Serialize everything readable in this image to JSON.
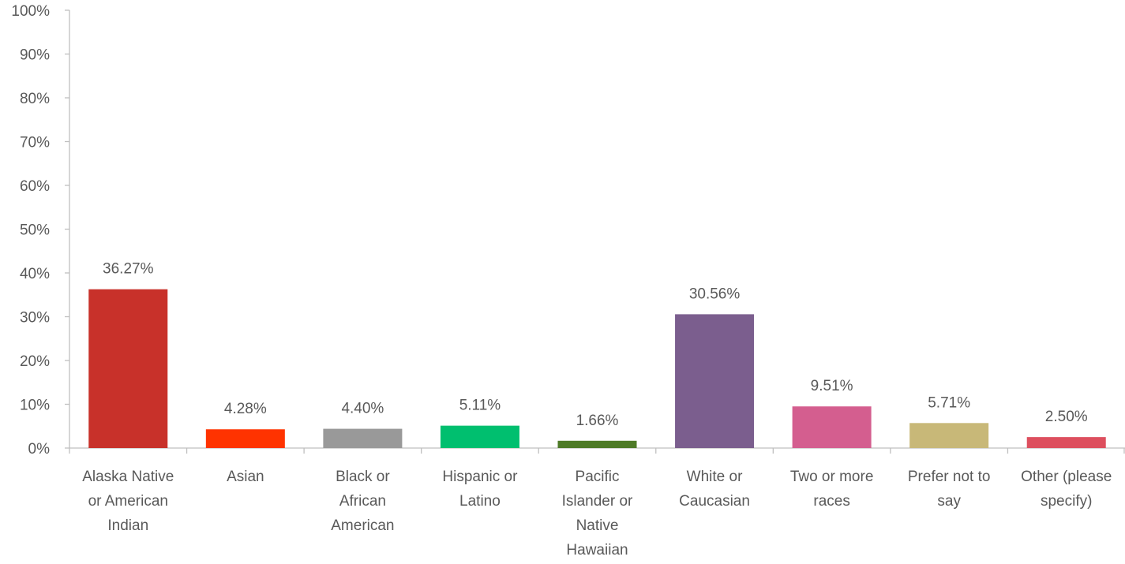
{
  "chart_data": {
    "type": "bar",
    "categories": [
      [
        "Alaska Native",
        "or American",
        "Indian"
      ],
      [
        "Asian"
      ],
      [
        "Black or",
        "African",
        "American"
      ],
      [
        "Hispanic or",
        "Latino"
      ],
      [
        "Pacific",
        "Islander or",
        "Native",
        "Hawaiian"
      ],
      [
        "White or",
        "Caucasian"
      ],
      [
        "Two or more",
        "races"
      ],
      [
        "Prefer not to",
        "say"
      ],
      [
        "Other (please",
        "specify)"
      ]
    ],
    "values": [
      36.27,
      4.28,
      4.4,
      5.11,
      1.66,
      30.56,
      9.51,
      5.71,
      2.5
    ],
    "data_labels": [
      "36.27%",
      "4.28%",
      "4.40%",
      "5.11%",
      "1.66%",
      "30.56%",
      "9.51%",
      "5.71%",
      "2.50%"
    ],
    "colors": [
      "#C8312A",
      "#FF3300",
      "#999999",
      "#00BF6F",
      "#4E7A27",
      "#7B5E8E",
      "#D45E8F",
      "#C8B878",
      "#DD4F5E"
    ],
    "ylim": [
      0,
      100
    ],
    "yticks": [
      "0%",
      "10%",
      "20%",
      "30%",
      "40%",
      "50%",
      "60%",
      "70%",
      "80%",
      "90%",
      "100%"
    ],
    "title": "",
    "xlabel": "",
    "ylabel": "",
    "grid": false,
    "axis_color": "#BFBFBF"
  }
}
